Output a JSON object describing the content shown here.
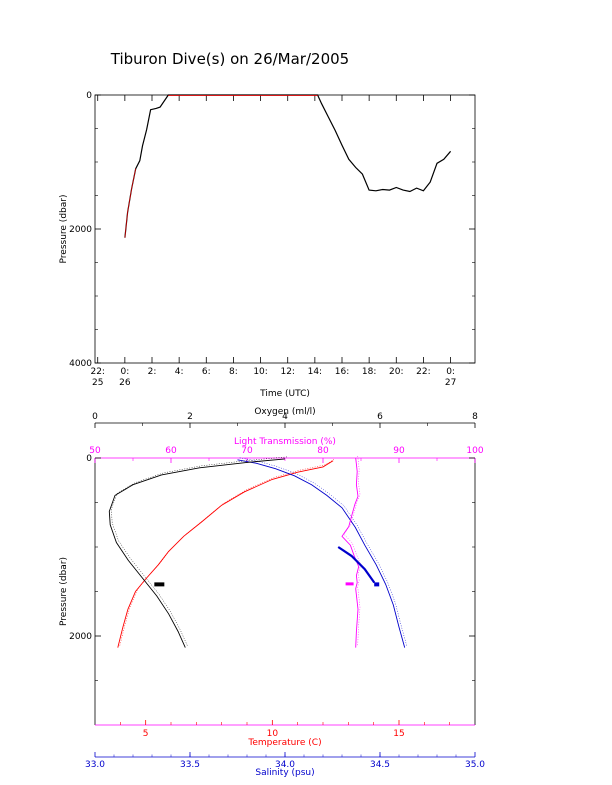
{
  "title": "Tiburon Dive(s) on 26/Mar/2005",
  "colors": {
    "axis": "#000000",
    "temperature": "#ff0000",
    "salinity": "#0000cc",
    "light_transmission": "#ff00ff",
    "oxygen": "#000000",
    "frame_bottom": "#ff00ff"
  },
  "chart_data": [
    {
      "type": "line",
      "xlabel": "Time (UTC)",
      "ylabel": "Pressure (dbar)",
      "ylim": [
        0,
        4000
      ],
      "yreversed": true,
      "yticks": [
        "0",
        "2000",
        "4000"
      ],
      "xticks": [
        {
          "t": -2,
          "top": "22:",
          "bottom": "25"
        },
        {
          "t": 0,
          "top": "0:",
          "bottom": "26"
        },
        {
          "t": 2,
          "top": "2:",
          "bottom": ""
        },
        {
          "t": 4,
          "top": "4:",
          "bottom": ""
        },
        {
          "t": 6,
          "top": "6:",
          "bottom": ""
        },
        {
          "t": 8,
          "top": "8:",
          "bottom": ""
        },
        {
          "t": 10,
          "top": "10:",
          "bottom": ""
        },
        {
          "t": 12,
          "top": "12:",
          "bottom": ""
        },
        {
          "t": 14,
          "top": "14:",
          "bottom": ""
        },
        {
          "t": 16,
          "top": "16:",
          "bottom": ""
        },
        {
          "t": 18,
          "top": "18:",
          "bottom": ""
        },
        {
          "t": 20,
          "top": "20:",
          "bottom": ""
        },
        {
          "t": 22,
          "top": "22:",
          "bottom": ""
        },
        {
          "t": 24,
          "top": "0:",
          "bottom": "27"
        }
      ],
      "xlim_hours": [
        -2.2,
        25.8
      ],
      "series": [
        {
          "hours": [
            0,
            0.2,
            0.5,
            0.8,
            1.1,
            1.3,
            1.6,
            1.9,
            2.3,
            2.6,
            3.2,
            8,
            12,
            14.2,
            14.5,
            15,
            15.5,
            16,
            16.5,
            17,
            17.5,
            18,
            18.5,
            19,
            19.5,
            20,
            20.5,
            21,
            21.5,
            22,
            22.5,
            23,
            23.5,
            24
          ],
          "pressure": [
            2130,
            1750,
            1400,
            1100,
            980,
            760,
            520,
            220,
            200,
            180,
            0,
            0,
            0,
            0,
            130,
            330,
            530,
            750,
            960,
            1080,
            1180,
            1420,
            1430,
            1410,
            1420,
            1380,
            1420,
            1440,
            1390,
            1430,
            1300,
            1020,
            960,
            840
          ]
        }
      ]
    },
    {
      "type": "line",
      "ylabel": "Pressure (dbar)",
      "ylim": [
        0,
        3000
      ],
      "yreversed": true,
      "yticks": [
        "0",
        "2000"
      ],
      "axes": {
        "oxygen": {
          "label": "Oxygen (ml/l)",
          "range": [
            0,
            8
          ],
          "ticks": [
            "0",
            "2",
            "4",
            "6",
            "8"
          ]
        },
        "light_transmission": {
          "label": "Light Transmission (%)",
          "range": [
            50,
            100
          ],
          "ticks": [
            "50",
            "60",
            "70",
            "80",
            "90",
            "100"
          ]
        },
        "temperature": {
          "label": "Temperature (C)",
          "range": [
            3,
            18
          ],
          "ticks": [
            "5",
            "10",
            "15"
          ]
        },
        "salinity": {
          "label": "Salinity (psu)",
          "range": [
            33.0,
            35.0
          ],
          "ticks": [
            "33.0",
            "33.5",
            "34.0",
            "34.5",
            "35.0"
          ]
        }
      },
      "series": [
        {
          "name": "Temperature",
          "x": [
            3.9,
            4.1,
            4.3,
            4.6,
            5.0,
            5.5,
            5.9,
            6.5,
            7.2,
            8.0,
            8.9,
            10.0,
            11.0,
            11.5,
            12.0,
            12.4
          ],
          "y": [
            2130,
            1900,
            1700,
            1500,
            1360,
            1200,
            1050,
            880,
            720,
            530,
            380,
            240,
            160,
            130,
            100,
            30
          ]
        },
        {
          "name": "Salinity",
          "x": [
            34.63,
            34.6,
            34.57,
            34.53,
            34.48,
            34.42,
            34.37,
            34.3,
            34.22,
            34.14,
            34.05,
            33.95,
            33.85,
            33.75
          ],
          "y": [
            2130,
            1900,
            1650,
            1420,
            1200,
            980,
            780,
            560,
            420,
            300,
            200,
            120,
            60,
            20
          ]
        },
        {
          "name": "Oxygen",
          "x": [
            1.9,
            1.75,
            1.55,
            1.3,
            1.0,
            0.7,
            0.45,
            0.32,
            0.3,
            0.42,
            0.8,
            1.4,
            2.2,
            3.2,
            4.0
          ],
          "y": [
            2130,
            1950,
            1750,
            1550,
            1350,
            1150,
            950,
            750,
            600,
            420,
            300,
            190,
            110,
            50,
            10
          ]
        },
        {
          "name": "Light Transmission",
          "x": [
            84.3,
            84.5,
            84.4,
            84.6,
            84.2,
            83.8,
            83.4,
            82.5,
            83.6,
            84.1,
            84.7,
            84.4,
            84.5,
            84.3,
            84.6,
            84.4,
            84.3
          ],
          "y": [
            0,
            150,
            300,
            430,
            520,
            640,
            770,
            880,
            980,
            1100,
            1220,
            1320,
            1400,
            1470,
            1700,
            1950,
            2130
          ]
        }
      ]
    }
  ]
}
